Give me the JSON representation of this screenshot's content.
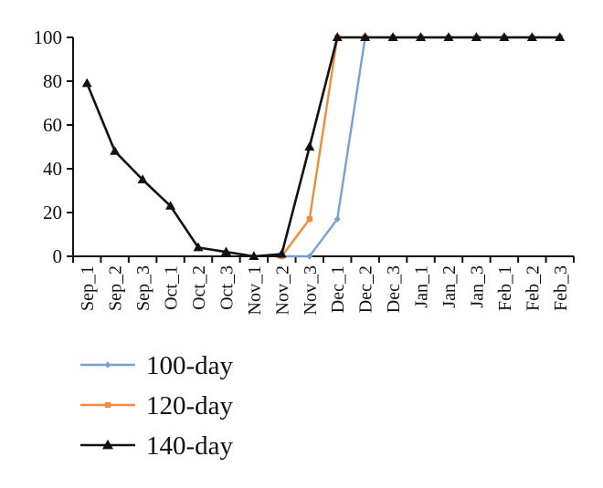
{
  "chart_data": {
    "type": "line",
    "categories": [
      "Sep_1",
      "Sep_2",
      "Sep_3",
      "Oct_1",
      "Oct_2",
      "Oct_3",
      "Nov_1",
      "Nov_2",
      "Nov_3",
      "Dec_1",
      "Dec_2",
      "Dec_3",
      "Jan_1",
      "Jan_2",
      "Jan_3",
      "Feb_1",
      "Feb_2",
      "Feb_3"
    ],
    "yticks": [
      "0",
      "20",
      "40",
      "60",
      "80",
      "100"
    ],
    "ylim": [
      0,
      100
    ],
    "grid": false,
    "legend_position": "bottom-left",
    "series": [
      {
        "name": "100-day",
        "color": "#7a9fd4",
        "marker": "diamond",
        "values": [
          null,
          null,
          null,
          null,
          null,
          null,
          null,
          0,
          0,
          17,
          100,
          100,
          100,
          100,
          100,
          100,
          100,
          100
        ]
      },
      {
        "name": "120-day",
        "color": "#f08a3c",
        "marker": "square",
        "values": [
          null,
          null,
          null,
          null,
          null,
          null,
          null,
          0,
          17,
          100,
          100,
          100,
          100,
          100,
          100,
          100,
          100,
          100
        ]
      },
      {
        "name": "140-day",
        "color": "#111111",
        "marker": "triangle",
        "values": [
          79,
          48,
          35,
          23,
          4,
          2,
          0,
          1,
          50,
          100,
          100,
          100,
          100,
          100,
          100,
          100,
          100,
          100
        ]
      }
    ]
  }
}
